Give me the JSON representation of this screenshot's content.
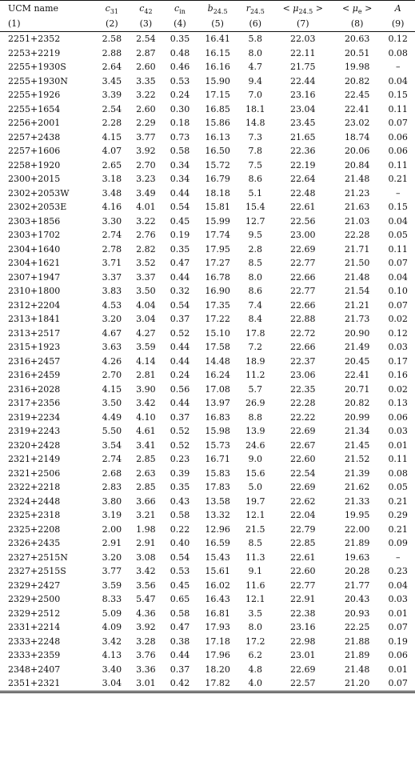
{
  "columns": [
    {
      "key": "name",
      "label": "UCM name",
      "sub": "",
      "index": "(1)"
    },
    {
      "key": "c31",
      "label": "c",
      "sub": "31",
      "index": "(2)"
    },
    {
      "key": "c42",
      "label": "c",
      "sub": "42",
      "index": "(3)"
    },
    {
      "key": "cin",
      "label": "c",
      "sub": "in",
      "index": "(4)"
    },
    {
      "key": "b245",
      "label": "b",
      "sub": "24.5",
      "index": "(5)"
    },
    {
      "key": "r245",
      "label": "r",
      "sub": "24.5",
      "index": "(6)"
    },
    {
      "key": "mu245",
      "label": "< μ",
      "sub": "24.5",
      "suffix": " >",
      "index": "(7)"
    },
    {
      "key": "mue",
      "label": "< μ",
      "sub": "e",
      "suffix": " >",
      "index": "(8)"
    },
    {
      "key": "A",
      "label": "A",
      "sub": "",
      "index": "(9)"
    }
  ],
  "rows": [
    [
      "2251+2352",
      "2.58",
      "2.54",
      "0.35",
      "16.41",
      "5.8",
      "22.03",
      "20.63",
      "0.12"
    ],
    [
      "2253+2219",
      "2.88",
      "2.87",
      "0.48",
      "16.15",
      "8.0",
      "22.11",
      "20.51",
      "0.08"
    ],
    [
      "2255+1930S",
      "2.64",
      "2.60",
      "0.46",
      "16.16",
      "4.7",
      "21.75",
      "19.98",
      "–"
    ],
    [
      "2255+1930N",
      "3.45",
      "3.35",
      "0.53",
      "15.90",
      "9.4",
      "22.44",
      "20.82",
      "0.04"
    ],
    [
      "2255+1926",
      "3.39",
      "3.22",
      "0.24",
      "17.15",
      "7.0",
      "23.16",
      "22.45",
      "0.15"
    ],
    [
      "2255+1654",
      "2.54",
      "2.60",
      "0.30",
      "16.85",
      "18.1",
      "23.04",
      "22.41",
      "0.11"
    ],
    [
      "2256+2001",
      "2.28",
      "2.29",
      "0.18",
      "15.86",
      "14.8",
      "23.45",
      "23.02",
      "0.07"
    ],
    [
      "2257+2438",
      "4.15",
      "3.77",
      "0.73",
      "16.13",
      "7.3",
      "21.65",
      "18.74",
      "0.06"
    ],
    [
      "2257+1606",
      "4.07",
      "3.92",
      "0.58",
      "16.50",
      "7.8",
      "22.36",
      "20.06",
      "0.06"
    ],
    [
      "2258+1920",
      "2.65",
      "2.70",
      "0.34",
      "15.72",
      "7.5",
      "22.19",
      "20.84",
      "0.11"
    ],
    [
      "2300+2015",
      "3.18",
      "3.23",
      "0.34",
      "16.79",
      "8.6",
      "22.64",
      "21.48",
      "0.21"
    ],
    [
      "2302+2053W",
      "3.48",
      "3.49",
      "0.44",
      "18.18",
      "5.1",
      "22.48",
      "21.23",
      "–"
    ],
    [
      "2302+2053E",
      "4.16",
      "4.01",
      "0.54",
      "15.81",
      "15.4",
      "22.61",
      "21.63",
      "0.15"
    ],
    [
      "2303+1856",
      "3.30",
      "3.22",
      "0.45",
      "15.99",
      "12.7",
      "22.56",
      "21.03",
      "0.04"
    ],
    [
      "2303+1702",
      "2.74",
      "2.76",
      "0.19",
      "17.74",
      "9.5",
      "23.00",
      "22.28",
      "0.05"
    ],
    [
      "2304+1640",
      "2.78",
      "2.82",
      "0.35",
      "17.95",
      "2.8",
      "22.69",
      "21.71",
      "0.11"
    ],
    [
      "2304+1621",
      "3.71",
      "3.52",
      "0.47",
      "17.27",
      "8.5",
      "22.77",
      "21.50",
      "0.07"
    ],
    [
      "2307+1947",
      "3.37",
      "3.37",
      "0.44",
      "16.78",
      "8.0",
      "22.66",
      "21.48",
      "0.04"
    ],
    [
      "2310+1800",
      "3.83",
      "3.50",
      "0.32",
      "16.90",
      "8.6",
      "22.77",
      "21.54",
      "0.10"
    ],
    [
      "2312+2204",
      "4.53",
      "4.04",
      "0.54",
      "17.35",
      "7.4",
      "22.66",
      "21.21",
      "0.07"
    ],
    [
      "2313+1841",
      "3.20",
      "3.04",
      "0.37",
      "17.22",
      "8.4",
      "22.88",
      "21.73",
      "0.02"
    ],
    [
      "2313+2517",
      "4.67",
      "4.27",
      "0.52",
      "15.10",
      "17.8",
      "22.72",
      "20.90",
      "0.12"
    ],
    [
      "2315+1923",
      "3.63",
      "3.59",
      "0.44",
      "17.58",
      "7.2",
      "22.66",
      "21.49",
      "0.03"
    ],
    [
      "2316+2457",
      "4.26",
      "4.14",
      "0.44",
      "14.48",
      "18.9",
      "22.37",
      "20.45",
      "0.17"
    ],
    [
      "2316+2459",
      "2.70",
      "2.81",
      "0.24",
      "16.24",
      "11.2",
      "23.06",
      "22.41",
      "0.16"
    ],
    [
      "2316+2028",
      "4.15",
      "3.90",
      "0.56",
      "17.08",
      "5.7",
      "22.35",
      "20.71",
      "0.02"
    ],
    [
      "2317+2356",
      "3.50",
      "3.42",
      "0.44",
      "13.97",
      "26.9",
      "22.28",
      "20.82",
      "0.13"
    ],
    [
      "2319+2234",
      "4.49",
      "4.10",
      "0.37",
      "16.83",
      "8.8",
      "22.22",
      "20.99",
      "0.06"
    ],
    [
      "2319+2243",
      "5.50",
      "4.61",
      "0.52",
      "15.98",
      "13.9",
      "22.69",
      "21.34",
      "0.03"
    ],
    [
      "2320+2428",
      "3.54",
      "3.41",
      "0.52",
      "15.73",
      "24.6",
      "22.67",
      "21.45",
      "0.01"
    ],
    [
      "2321+2149",
      "2.74",
      "2.85",
      "0.23",
      "16.71",
      "9.0",
      "22.60",
      "21.52",
      "0.11"
    ],
    [
      "2321+2506",
      "2.68",
      "2.63",
      "0.39",
      "15.83",
      "15.6",
      "22.54",
      "21.39",
      "0.08"
    ],
    [
      "2322+2218",
      "2.83",
      "2.85",
      "0.35",
      "17.83",
      "5.0",
      "22.69",
      "21.62",
      "0.05"
    ],
    [
      "2324+2448",
      "3.80",
      "3.66",
      "0.43",
      "13.58",
      "19.7",
      "22.62",
      "21.33",
      "0.21"
    ],
    [
      "2325+2318",
      "3.19",
      "3.21",
      "0.58",
      "13.32",
      "12.1",
      "22.04",
      "19.95",
      "0.29"
    ],
    [
      "2325+2208",
      "2.00",
      "1.98",
      "0.22",
      "12.96",
      "21.5",
      "22.79",
      "22.00",
      "0.21"
    ],
    [
      "2326+2435",
      "2.91",
      "2.91",
      "0.40",
      "16.59",
      "8.5",
      "22.85",
      "21.89",
      "0.09"
    ],
    [
      "2327+2515N",
      "3.20",
      "3.08",
      "0.54",
      "15.43",
      "11.3",
      "22.61",
      "19.63",
      "–"
    ],
    [
      "2327+2515S",
      "3.77",
      "3.42",
      "0.53",
      "15.61",
      "9.1",
      "22.60",
      "20.28",
      "0.23"
    ],
    [
      "2329+2427",
      "3.59",
      "3.56",
      "0.45",
      "16.02",
      "11.6",
      "22.77",
      "21.77",
      "0.04"
    ],
    [
      "2329+2500",
      "8.33",
      "5.47",
      "0.65",
      "16.43",
      "12.1",
      "22.91",
      "20.43",
      "0.03"
    ],
    [
      "2329+2512",
      "5.09",
      "4.36",
      "0.58",
      "16.81",
      "3.5",
      "22.38",
      "20.93",
      "0.01"
    ],
    [
      "2331+2214",
      "4.09",
      "3.92",
      "0.47",
      "17.93",
      "8.0",
      "23.16",
      "22.25",
      "0.07"
    ],
    [
      "2333+2248",
      "3.42",
      "3.28",
      "0.38",
      "17.18",
      "17.2",
      "22.98",
      "21.88",
      "0.19"
    ],
    [
      "2333+2359",
      "4.13",
      "3.76",
      "0.44",
      "17.96",
      "6.2",
      "23.01",
      "21.89",
      "0.06"
    ],
    [
      "2348+2407",
      "3.40",
      "3.36",
      "0.37",
      "18.20",
      "4.8",
      "22.69",
      "21.48",
      "0.01"
    ],
    [
      "2351+2321",
      "3.04",
      "3.01",
      "0.42",
      "17.82",
      "4.0",
      "22.57",
      "21.20",
      "0.07"
    ]
  ]
}
